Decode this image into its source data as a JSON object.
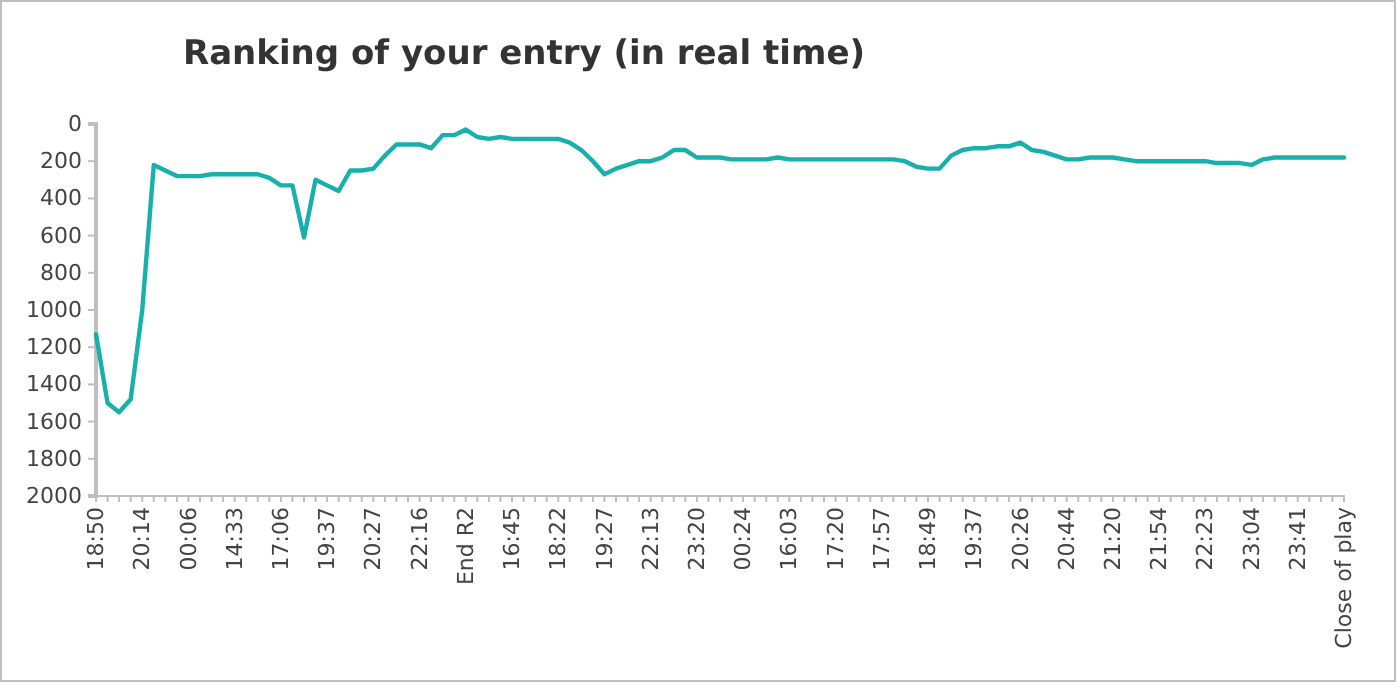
{
  "chart_data": {
    "type": "line",
    "title": "Ranking of your entry (in real time)",
    "categories": [
      "18:50",
      null,
      null,
      null,
      "20:14",
      null,
      null,
      null,
      "00:06",
      null,
      null,
      null,
      "14:33",
      null,
      null,
      null,
      "17:06",
      null,
      null,
      null,
      "19:37",
      null,
      null,
      null,
      "20:27",
      null,
      null,
      null,
      "22:16",
      null,
      null,
      null,
      "End R2",
      null,
      null,
      null,
      "16:45",
      null,
      null,
      null,
      "18:22",
      null,
      null,
      null,
      "19:27",
      null,
      null,
      null,
      "22:13",
      null,
      null,
      null,
      "23:20",
      null,
      null,
      null,
      "00:24",
      null,
      null,
      null,
      "16:03",
      null,
      null,
      null,
      "17:20",
      null,
      null,
      null,
      "17:57",
      null,
      null,
      null,
      "18:49",
      null,
      null,
      null,
      "19:37",
      null,
      null,
      null,
      "20:26",
      null,
      null,
      null,
      "20:44",
      null,
      null,
      null,
      "21:20",
      null,
      null,
      null,
      "21:54",
      null,
      null,
      null,
      "22:23",
      null,
      null,
      null,
      "23:04",
      null,
      null,
      null,
      "23:41",
      null,
      null,
      null,
      "Close of play"
    ],
    "series": [
      {
        "color": "#17b0ac",
        "values": [
          1130,
          1500,
          1550,
          1480,
          1000,
          220,
          250,
          280,
          280,
          280,
          270,
          270,
          270,
          270,
          270,
          290,
          330,
          330,
          610,
          300,
          330,
          360,
          250,
          250,
          240,
          170,
          110,
          110,
          110,
          130,
          60,
          60,
          30,
          70,
          80,
          70,
          80,
          80,
          80,
          80,
          80,
          100,
          140,
          200,
          270,
          240,
          220,
          200,
          200,
          180,
          140,
          140,
          180,
          180,
          180,
          190,
          190,
          190,
          190,
          180,
          190,
          190,
          190,
          190,
          190,
          190,
          190,
          190,
          190,
          190,
          200,
          230,
          240,
          240,
          170,
          140,
          130,
          130,
          120,
          120,
          100,
          140,
          150,
          170,
          190,
          190,
          180,
          180,
          180,
          190,
          200,
          200,
          200,
          200,
          200,
          200,
          200,
          210,
          210,
          210,
          220,
          190,
          180,
          180,
          180,
          180,
          180,
          180,
          180
        ]
      }
    ],
    "ylim": [
      2000,
      0
    ],
    "yticks": [
      0,
      200,
      400,
      600,
      800,
      1000,
      1200,
      1400,
      1600,
      1800,
      2000
    ],
    "grid": false,
    "marker": "none",
    "line_style": "solid"
  }
}
